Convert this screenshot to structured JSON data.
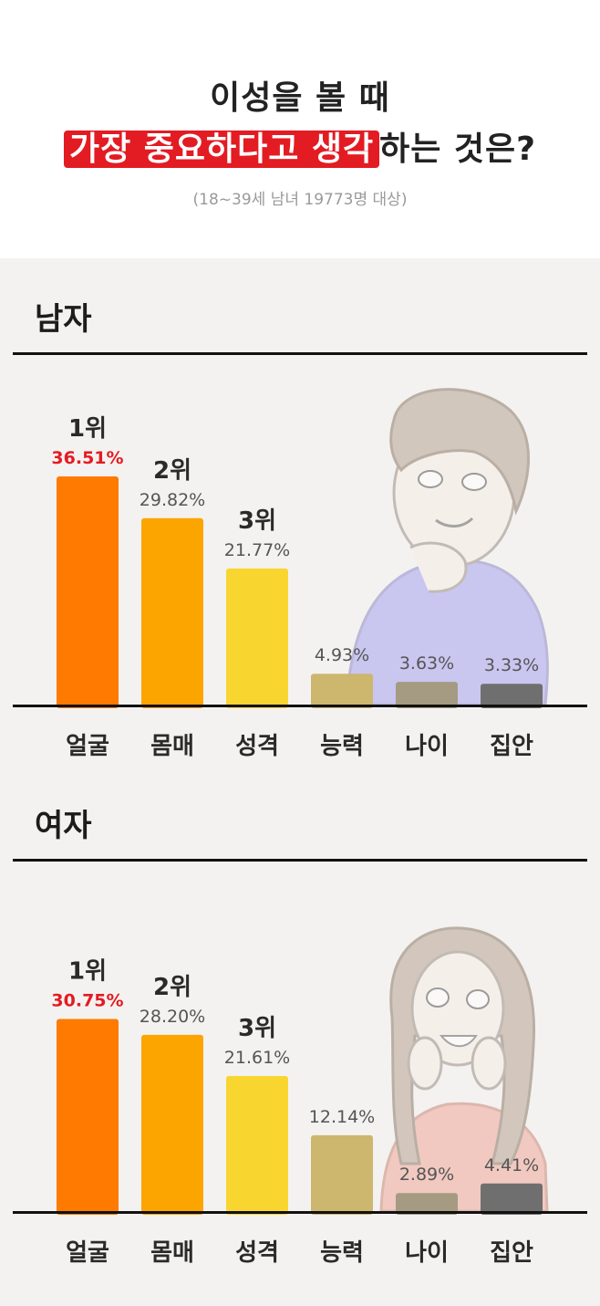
{
  "header": {
    "title_line1": "이성을 볼 때",
    "title_highlight": "가장 중요하다고 생각",
    "title_rest": "하는 것은?",
    "subtitle": "(18~39세 남녀 19773명 대상)"
  },
  "colors": {
    "bars": [
      "#ff7a00",
      "#fca500",
      "#f9d530",
      "#cdb66e",
      "#a59a82",
      "#6f6f6f"
    ],
    "highlight": "#e31b23",
    "rank_value": "#e31b23"
  },
  "chart_data": [
    {
      "type": "bar",
      "title": "남자",
      "categories": [
        "얼굴",
        "몸매",
        "성격",
        "능력",
        "나이",
        "집안"
      ],
      "values": [
        36.51,
        29.82,
        21.77,
        4.93,
        3.63,
        3.33
      ],
      "value_labels": [
        "36.51%",
        "29.82%",
        "21.77%",
        "4.93%",
        "3.63%",
        "3.33%"
      ],
      "ranks": [
        "1위",
        "2위",
        "3위",
        "",
        "",
        ""
      ],
      "ylim": [
        0,
        40
      ]
    },
    {
      "type": "bar",
      "title": "여자",
      "categories": [
        "얼굴",
        "몸매",
        "성격",
        "능력",
        "나이",
        "집안"
      ],
      "values": [
        30.75,
        28.2,
        21.61,
        12.14,
        2.89,
        4.41
      ],
      "value_labels": [
        "30.75%",
        "28.20%",
        "21.61%",
        "12.14%",
        "2.89%",
        "4.41%"
      ],
      "ranks": [
        "1위",
        "2위",
        "3위",
        "",
        "",
        ""
      ],
      "ylim": [
        0,
        40
      ]
    }
  ]
}
